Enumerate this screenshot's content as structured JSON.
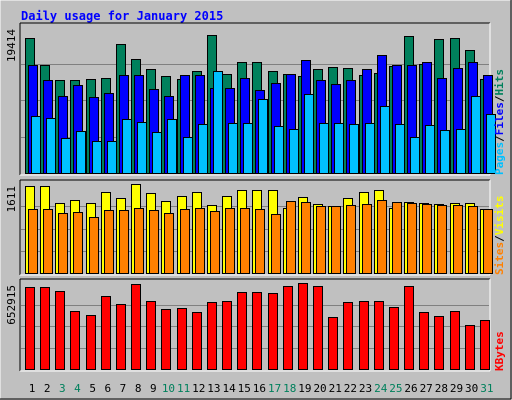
{
  "chart_data": {
    "title": "Daily usage for January 2015",
    "type": "bar",
    "categories": [
      "1",
      "2",
      "3",
      "4",
      "5",
      "6",
      "7",
      "8",
      "9",
      "10",
      "11",
      "12",
      "13",
      "14",
      "15",
      "16",
      "17",
      "18",
      "19",
      "20",
      "21",
      "22",
      "23",
      "24",
      "25",
      "26",
      "27",
      "28",
      "29",
      "30",
      "31"
    ],
    "weekend_days": [
      "3",
      "4",
      "10",
      "11",
      "17",
      "18",
      "24",
      "25",
      "31"
    ],
    "panels": [
      {
        "id": "hits-files-pages",
        "scale_label": "19414",
        "ylim": [
          0,
          19414
        ],
        "side_legend": [
          "Pages",
          "Files",
          "Hits"
        ],
        "series": [
          {
            "name": "Hits",
            "color": "#00805c",
            "values": [
              18000,
              14400,
              12400,
              12300,
              12500,
              12600,
              17100,
              15200,
              13800,
              12900,
              12500,
              13500,
              18300,
              13100,
              14700,
              14700,
              13500,
              13100,
              12900,
              13800,
              14100,
              13900,
              13000,
              13300,
              14200,
              18200,
              14500,
              17800,
              18000,
              16300,
              12500
            ]
          },
          {
            "name": "Files",
            "color": "#0000ff",
            "values": [
              14400,
              12300,
              10300,
              11700,
              10100,
              10700,
              13000,
              13000,
              11200,
              10200,
              13000,
              13000,
              11300,
              11300,
              12600,
              11100,
              12000,
              13100,
              15000,
              12400,
              11800,
              12400,
              13800,
              15700,
              14400,
              14300,
              14700,
              12600,
              14000,
              14700,
              13000
            ]
          },
          {
            "name": "Pages",
            "color": "#00c0ff",
            "values": [
              7600,
              7300,
              4700,
              5600,
              4300,
              4300,
              7200,
              6800,
              5400,
              7200,
              4800,
              6500,
              13500,
              6700,
              6600,
              9800,
              6200,
              5900,
              10500,
              6600,
              6600,
              6500,
              6700,
              8900,
              6500,
              4800,
              6400,
              5700,
              5900,
              10300,
              7800
            ]
          }
        ]
      },
      {
        "id": "visits-sites",
        "scale_label": "1611",
        "ylim": [
          0,
          1611
        ],
        "side_legend": [
          "Sites",
          "Visits"
        ],
        "series": [
          {
            "name": "Visits",
            "color": "#ffff00",
            "values": [
              1580,
              1580,
              1270,
              1330,
              1270,
              1460,
              1360,
              1610,
              1450,
              1300,
              1400,
              1470,
              1230,
              1400,
              1500,
              1500,
              1500,
              1170,
              1380,
              1250,
              1220,
              1360,
              1460,
              1500,
              1180,
              1290,
              1260,
              1250,
              1260,
              1270,
              1150
            ]
          },
          {
            "name": "Sites",
            "color": "#ff8000",
            "values": [
              1150,
              1160,
              1090,
              1110,
              1010,
              1140,
              1140,
              1170,
              1140,
              1080,
              1150,
              1170,
              1130,
              1180,
              1180,
              1160,
              1060,
              1300,
              1280,
              1220,
              1210,
              1230,
              1240,
              1320,
              1280,
              1260,
              1250,
              1230,
              1230,
              1210,
              1160
            ]
          }
        ]
      },
      {
        "id": "kbytes",
        "scale_label": "652915",
        "ylim": [
          0,
          652915
        ],
        "side_legend": [
          "KBytes"
        ],
        "series": [
          {
            "name": "KBytes",
            "color": "#ff0000",
            "values": [
              625000,
              625000,
              594000,
              440000,
              410000,
              553000,
              497000,
              643000,
              516000,
              458000,
              465000,
              435000,
              510000,
              516000,
              588000,
              588000,
              578000,
              630000,
              652000,
              628000,
              393000,
              508000,
              516000,
              516000,
              474000,
              628000,
              430000,
              406000,
              442000,
              336000,
              375000
            ]
          }
        ]
      }
    ]
  },
  "colors": {
    "background": "#c0c0c0",
    "title": "#0000ff",
    "day_label_weekday": "#000000",
    "day_label_weekend": "#00805c",
    "gridline": "#808080"
  }
}
